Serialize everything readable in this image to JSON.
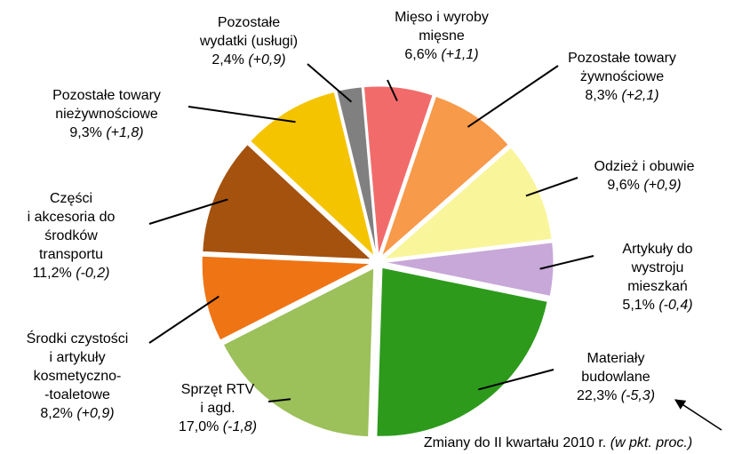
{
  "chart_data": {
    "type": "pie",
    "categories": [
      [
        "Mięso i wyroby",
        "mięsne"
      ],
      [
        "Pozostałe towary",
        "żywnościowe"
      ],
      [
        "Odzież i obuwie"
      ],
      [
        "Artykuły do",
        "wystroju",
        "mieszkań"
      ],
      [
        "Materiały",
        "budowlane"
      ],
      [
        "Sprzęt RTV",
        "i agd."
      ],
      [
        "Środki czystości",
        "i artykuły",
        "kosmetyczno-",
        "-toaletowe"
      ],
      [
        "Części",
        "i akcesoria do",
        "środków",
        "transportu"
      ],
      [
        "Pozostałe towary",
        "nieżywnościowe"
      ],
      [
        "Pozostałe",
        "wydatki (usługi)"
      ]
    ],
    "values": [
      6.6,
      8.3,
      9.6,
      5.1,
      22.3,
      17.0,
      8.2,
      11.2,
      9.3,
      2.4
    ],
    "value_labels": [
      "6,6%",
      "8,3%",
      "9,6%",
      "5,1%",
      "22,3%",
      "17,0%",
      "8,2%",
      "11,2%",
      "9,3%",
      "2,4%"
    ],
    "changes": [
      1.1,
      2.1,
      0.9,
      -0.4,
      -5.3,
      -1.8,
      0.9,
      -0.2,
      1.8,
      0.9
    ],
    "change_labels": [
      "(+1,1)",
      "(+2,1)",
      "(+0,9)",
      "(-0,4)",
      "(-5,3)",
      "(-1,8)",
      "(+0,9)",
      "(-0,2)",
      "(+1,8)",
      "(+0,9)"
    ],
    "colors": [
      "#f26b6b",
      "#f79a4a",
      "#f9f59a",
      "#c7a8d8",
      "#2d9a1c",
      "#9cc05a",
      "#ef7414",
      "#a5520f",
      "#f5c400",
      "#808080"
    ],
    "note": "Zmiany do II kwartału 2010 r.",
    "note_unit": "(w pkt. proc.)"
  }
}
